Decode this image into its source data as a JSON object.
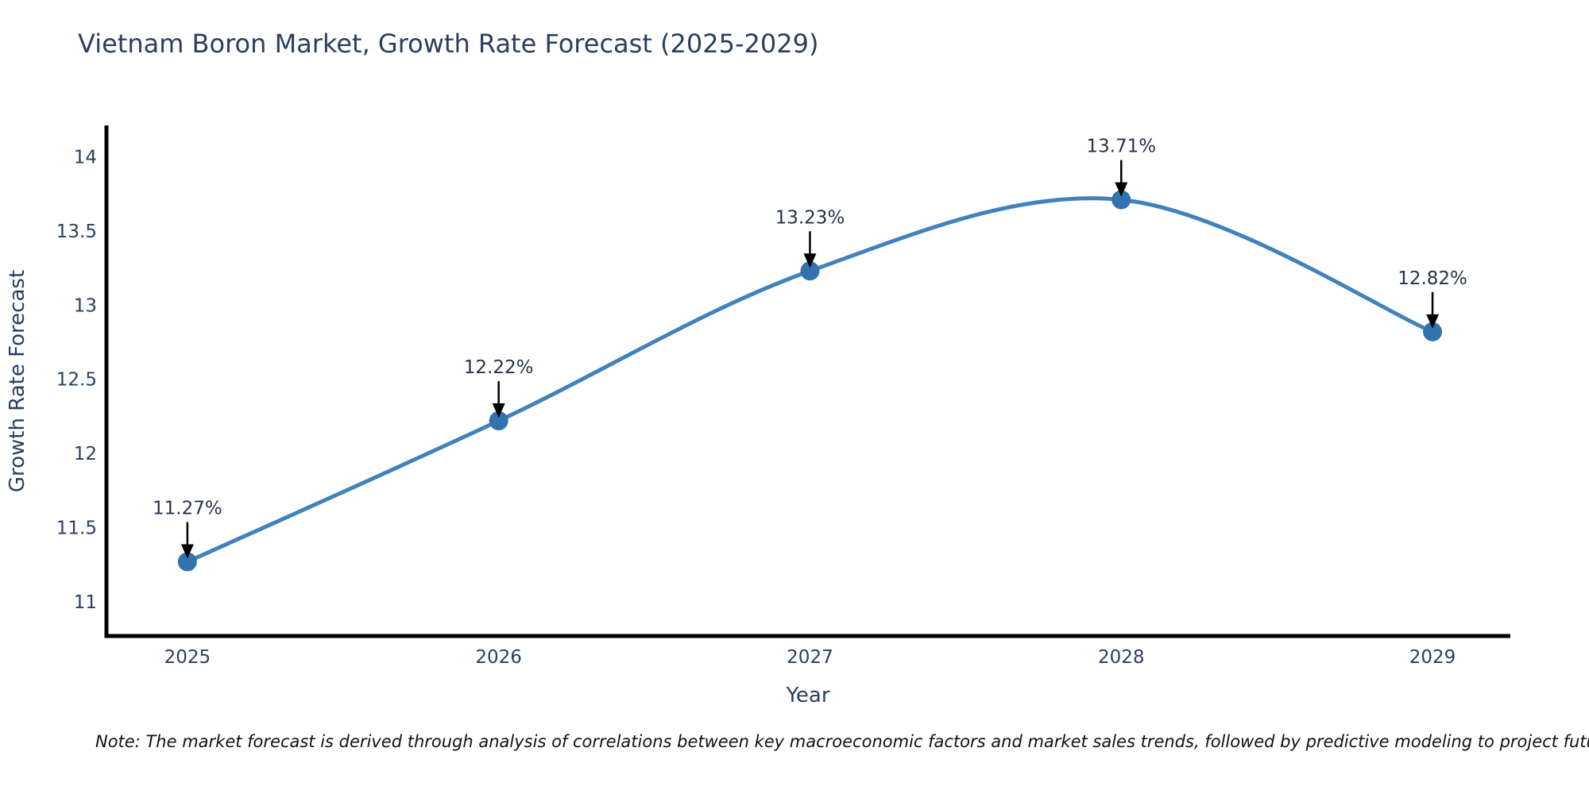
{
  "chart_data": {
    "type": "line",
    "title": "Vietnam Boron Market, Growth Rate Forecast (2025-2029)",
    "xlabel": "Year",
    "ylabel": "Growth Rate Forecast",
    "categories": [
      2025,
      2026,
      2027,
      2028,
      2029
    ],
    "series": [
      {
        "name": "Growth Rate Forecast",
        "values": [
          11.27,
          12.22,
          13.23,
          13.71,
          12.82
        ],
        "point_labels": [
          "11.27%",
          "12.22%",
          "13.23%",
          "13.71%",
          "12.82%"
        ]
      }
    ],
    "yticks": [
      11,
      11.5,
      12,
      12.5,
      13,
      13.5,
      14
    ],
    "ylim": [
      10.77,
      14.2
    ],
    "xlim": [
      2024.74,
      2029.25
    ],
    "grid": false,
    "legend_position": "none",
    "line_shape": "spline",
    "colors": {
      "line": "#4182bc",
      "marker": "#3272ae",
      "axis": "#000000",
      "text": "#2a3f5f",
      "annotation_arrow": "#000000"
    },
    "note": "Note: The market forecast is derived through analysis of correlations between key macroeconomic factors and market sales trends, followed by predictive modeling to project future sal"
  }
}
